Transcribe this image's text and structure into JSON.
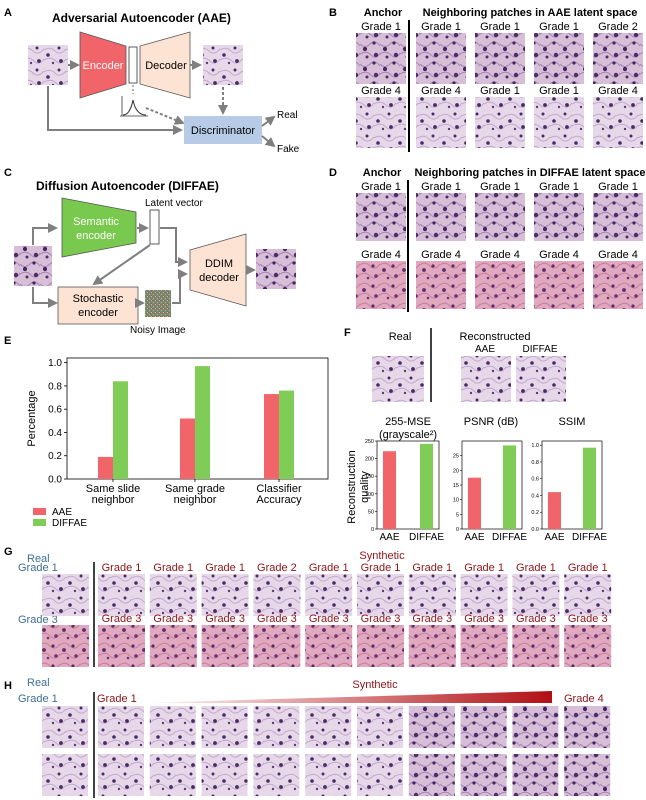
{
  "colors": {
    "encoder": "#f0646a",
    "decoder": "#fde3d3",
    "discriminator": "#b7cbe6",
    "semantic_encoder": "#7ac94f",
    "aae": "#f0646a",
    "diffae": "#7fcd56",
    "real_grade_label": "#3f6f96",
    "synthetic_label": "#8c1418",
    "tissue_light": "#e3d4e6",
    "tissue_pink": "#dfa8bd",
    "nucleus": "#4a2a64"
  },
  "panel_letters": {
    "a": "A",
    "b": "B",
    "c": "C",
    "d": "D",
    "e": "E",
    "f": "F",
    "g": "G",
    "h": "H"
  },
  "panel_a": {
    "title": "Adversarial Autoencoder (AAE)",
    "encoder": "Encoder",
    "decoder": "Decoder",
    "discriminator": "Discriminator",
    "real": "Real",
    "fake": "Fake"
  },
  "panel_b": {
    "anchor": "Anchor",
    "title": "Neighboring patches in AAE latent space",
    "row1": [
      "Grade 1",
      "Grade 1",
      "Grade 1",
      "Grade 1",
      "Grade 2"
    ],
    "row2": [
      "Grade 4",
      "Grade 4",
      "Grade 1",
      "Grade 1",
      "Grade 4"
    ]
  },
  "panel_c": {
    "title": "Diffusion Autoencoder (DIFFAE)",
    "semantic_encoder_l1": "Semantic",
    "semantic_encoder_l2": "encoder",
    "latent_vector": "Latent vector",
    "ddim_l1": "DDIM",
    "ddim_l2": "decoder",
    "stochastic_l1": "Stochastic",
    "stochastic_l2": "encoder",
    "noisy_image": "Noisy Image"
  },
  "panel_d": {
    "anchor": "Anchor",
    "title": "Neighboring patches in DIFFAE latent space",
    "row1": [
      "Grade 1",
      "Grade 1",
      "Grade 1",
      "Grade 1",
      "Grade 1"
    ],
    "row2": [
      "Grade 4",
      "Grade 4",
      "Grade 4",
      "Grade 4",
      "Grade 4"
    ]
  },
  "chart_e": {
    "type": "bar",
    "categories": [
      [
        "Same slide",
        "neighbor"
      ],
      [
        "Same grade",
        "neighbor"
      ],
      [
        "Classifier",
        "Accuracy"
      ]
    ],
    "series": [
      {
        "name": "AAE",
        "values": [
          0.19,
          0.52,
          0.73
        ]
      },
      {
        "name": "DIFFAE",
        "values": [
          0.84,
          0.97,
          0.76
        ]
      }
    ],
    "ylabel": "Percentage",
    "ylim": [
      0,
      1.0
    ],
    "yticks": [
      "0.0",
      "0.2",
      "0.4",
      "0.6",
      "0.8",
      "1.0"
    ],
    "legend_position": "bottom-left"
  },
  "panel_f": {
    "real": "Real",
    "reconstructed": "Reconstructed",
    "aae": "AAE",
    "diffae": "DIFFAE",
    "ylabel_l1": "Reconstruction",
    "ylabel_l2": "quality",
    "charts": [
      {
        "title_l1": "255-MSE",
        "title_l2": "(grayscale²)",
        "categories": [
          "AAE",
          "DIFFAE"
        ],
        "values": [
          221,
          242
        ],
        "ylim": [
          0,
          250
        ],
        "yticks": [
          "0",
          "50",
          "100",
          "150",
          "200",
          "250"
        ]
      },
      {
        "title_l1": "PSNR (dB)",
        "title_l2": "",
        "categories": [
          "AAE",
          "DIFFAE"
        ],
        "values": [
          17.5,
          28.5
        ],
        "ylim": [
          0,
          30
        ],
        "yticks": [
          "0",
          "5",
          "10",
          "15",
          "20",
          "25"
        ]
      },
      {
        "title_l1": "SSIM",
        "title_l2": "",
        "categories": [
          "AAE",
          "DIFFAE"
        ],
        "values": [
          0.44,
          0.97
        ],
        "ylim": [
          0,
          1.05
        ],
        "yticks": [
          "0.0",
          "0.2",
          "0.4",
          "0.6",
          "0.8",
          "1.0"
        ]
      }
    ]
  },
  "panel_g": {
    "real": "Real",
    "synthetic": "Synthetic",
    "real_row1": "Grade 1",
    "real_row2": "Grade 3",
    "row1": [
      "Grade 1",
      "Grade 1",
      "Grade 1",
      "Grade 2",
      "Grade 1",
      "Grade 1",
      "Grade 1",
      "Grade 1",
      "Grade 1",
      "Grade 1"
    ],
    "row2": [
      "Grade 3",
      "Grade 3",
      "Grade 3",
      "Grade 3",
      "Grade 3",
      "Grade 3",
      "Grade 3",
      "Grade 3",
      "Grade 3",
      "Grade 3"
    ]
  },
  "panel_h": {
    "real": "Real",
    "synthetic": "Synthetic",
    "real_label": "Grade 1",
    "start_label": "Grade 1",
    "end_label": "Grade 4"
  }
}
